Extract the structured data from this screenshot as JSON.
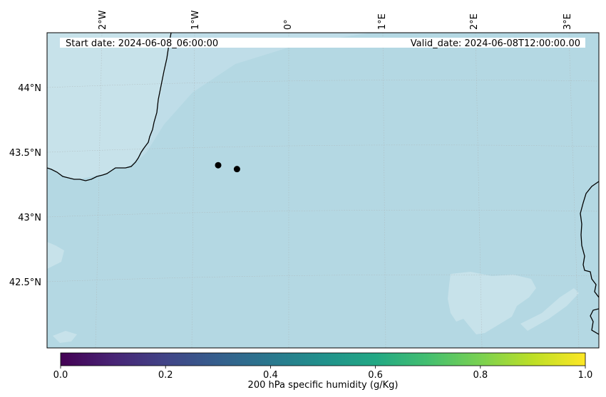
{
  "map": {
    "start_date": "Start date: 2024-06-08_06:00:00",
    "valid_date": "Valid_date: 2024-06-08T12:00:00.00",
    "longitude_labels": [
      "2°W",
      "1°W",
      "0°",
      "1°E",
      "2°E",
      "3°E"
    ],
    "latitude_labels": [
      "44°N",
      "43.5°N",
      "43°N",
      "42.5°N"
    ],
    "gridlines": true,
    "points": [
      {
        "lon": -0.75,
        "lat": 43.4
      },
      {
        "lon": -0.55,
        "lat": 43.37
      }
    ],
    "colors": {
      "sea": "#b4d8e3",
      "land_faded": "#c7e2ea",
      "coastline": "#000000",
      "point": "#000000"
    }
  },
  "colorbar": {
    "label": "200 hPa specific humidity (g/Kg)",
    "ticks": [
      "0.0",
      "0.2",
      "0.4",
      "0.6",
      "0.8",
      "1.0"
    ],
    "range": [
      0.0,
      1.0
    ],
    "colormap": "viridis"
  }
}
